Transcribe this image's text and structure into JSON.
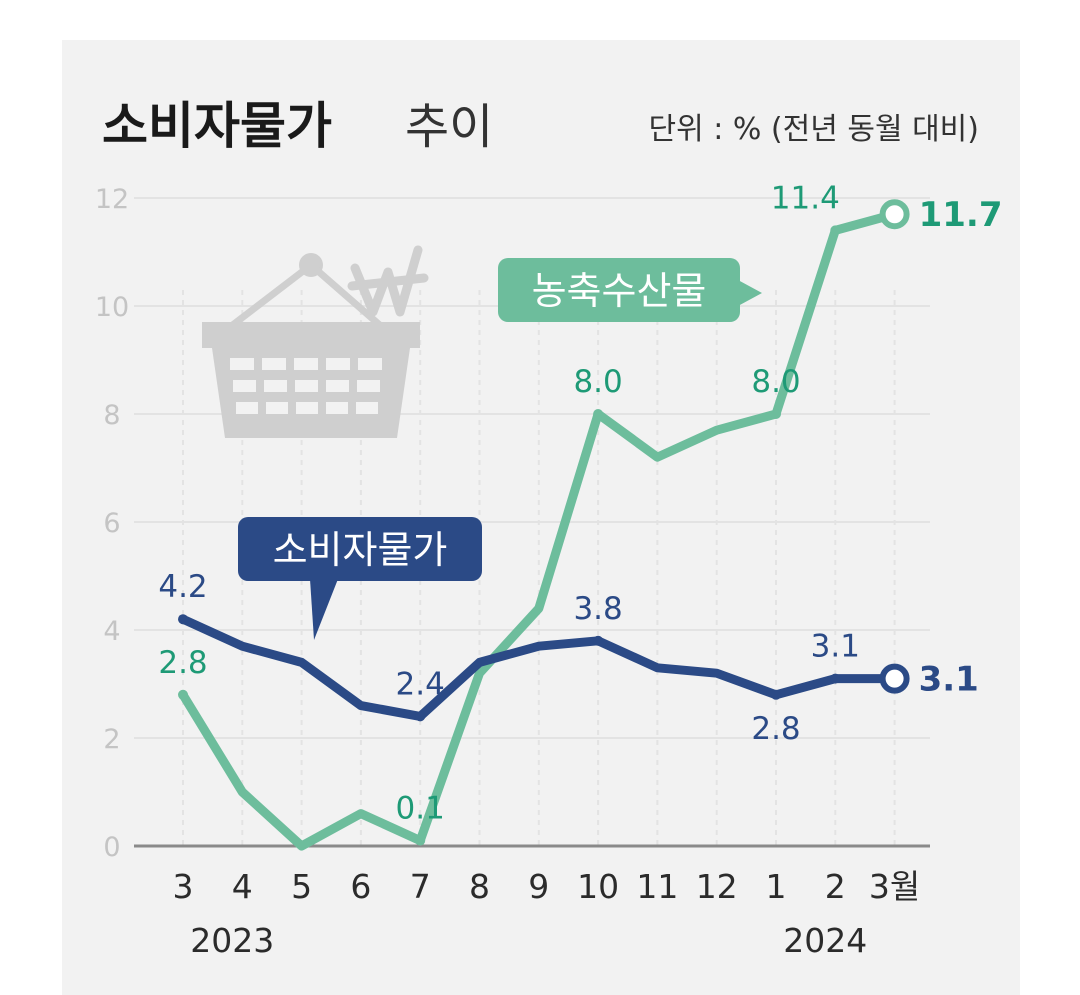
{
  "title": {
    "main": "소비자물가",
    "sub": "추이",
    "unit": "단위 : % (전년 동월 대비)"
  },
  "colors": {
    "green": "#6dbd9c",
    "green_text": "#1e9a76",
    "blue": "#2b4a86",
    "grid": "#e3e3e3",
    "icon": "#cfcfcf"
  },
  "icons": [
    "shopping-basket-icon",
    "won-sign-icon"
  ],
  "chart_data": {
    "type": "line",
    "categories": [
      "3",
      "4",
      "5",
      "6",
      "7",
      "8",
      "9",
      "10",
      "11",
      "12",
      "1",
      "2",
      "3월"
    ],
    "year_labels": [
      {
        "text": "2023",
        "at_index": 1
      },
      {
        "text": "2024",
        "at_index": 11
      }
    ],
    "ylim": [
      0,
      12
    ],
    "yticks": [
      "0",
      "2",
      "4",
      "6",
      "8",
      "10",
      "12"
    ],
    "grid": true,
    "series": [
      {
        "name": "농축수산물",
        "color": "#6dbd9c",
        "values": [
          2.8,
          1.0,
          0.0,
          0.6,
          0.1,
          3.2,
          4.4,
          8.0,
          7.2,
          7.7,
          8.0,
          11.4,
          11.7
        ],
        "data_labels": [
          {
            "index": 0,
            "text": "2.8"
          },
          {
            "index": 4,
            "text": "0.1"
          },
          {
            "index": 7,
            "text": "8.0"
          },
          {
            "index": 10,
            "text": "8.0"
          },
          {
            "index": 11,
            "text": "11.4"
          }
        ],
        "end_label": "11.7"
      },
      {
        "name": "소비자물가",
        "color": "#2b4a86",
        "values": [
          4.2,
          3.7,
          3.4,
          2.6,
          2.4,
          3.4,
          3.7,
          3.8,
          3.3,
          3.2,
          2.8,
          3.1,
          3.1
        ],
        "data_labels": [
          {
            "index": 0,
            "text": "4.2"
          },
          {
            "index": 4,
            "text": "2.4"
          },
          {
            "index": 7,
            "text": "3.8"
          },
          {
            "index": 10,
            "text": "2.8"
          },
          {
            "index": 11,
            "text": "3.1"
          }
        ],
        "end_label": "3.1"
      }
    ]
  }
}
